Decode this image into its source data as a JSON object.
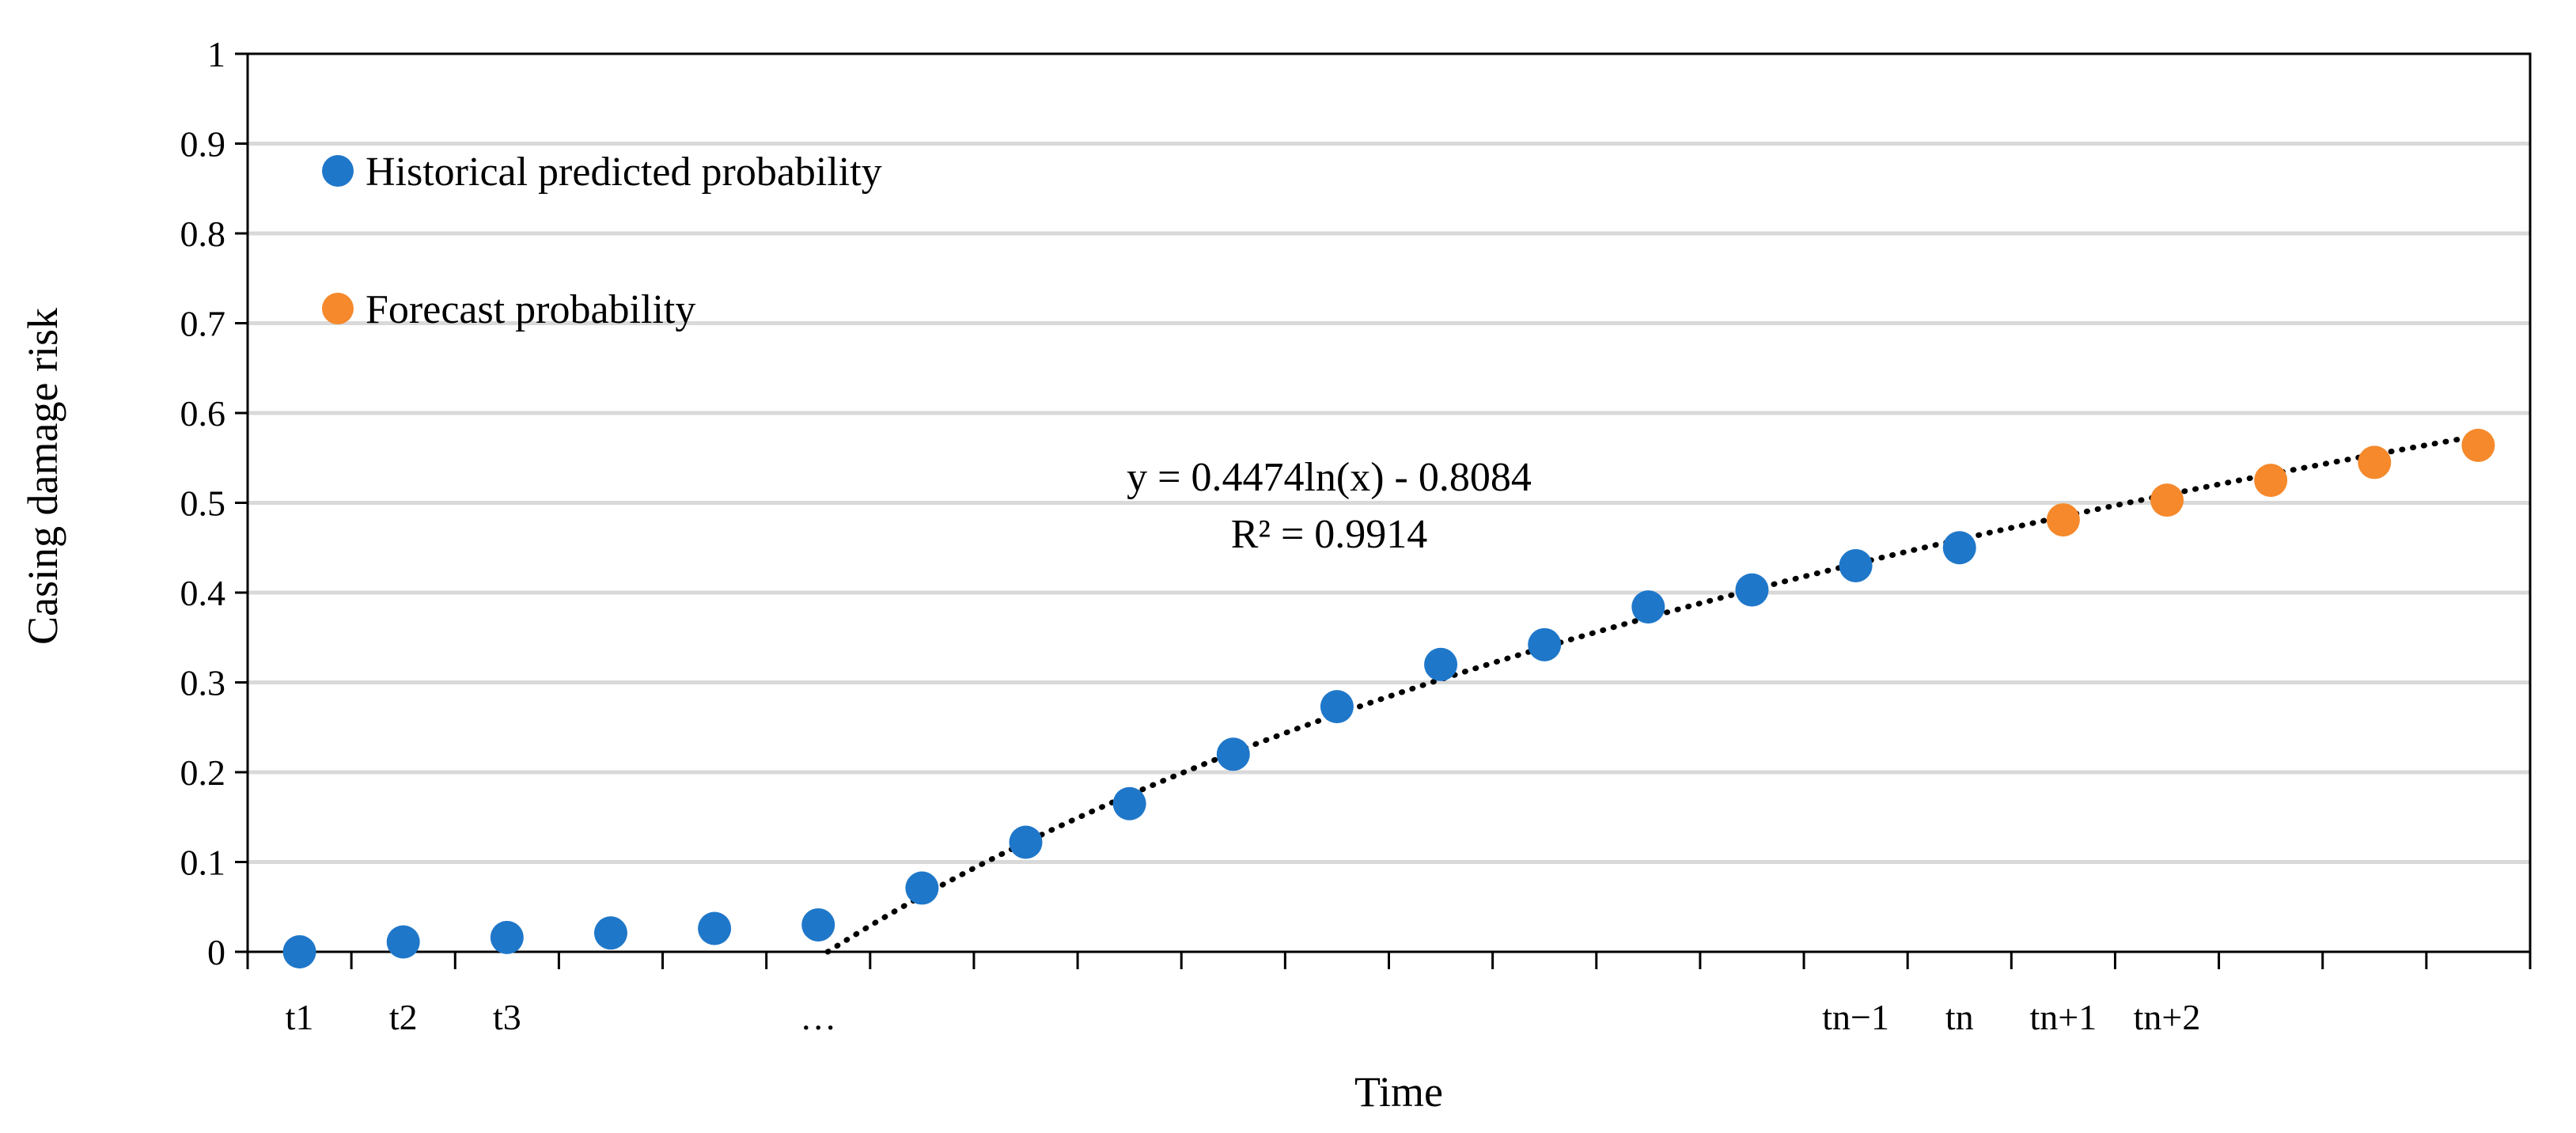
{
  "chart_data": {
    "type": "scatter",
    "title": "",
    "xlabel": "Time",
    "ylabel": "Casing damage risk",
    "ylim": [
      0,
      1
    ],
    "yticks": [
      "0",
      "0.1",
      "0.2",
      "0.3",
      "0.4",
      "0.5",
      "0.6",
      "0.7",
      "0.8",
      "0.9",
      "1"
    ],
    "xlim": [
      0.5,
      22.5
    ],
    "x_tick_labels": [
      {
        "x": 1,
        "label": "t1"
      },
      {
        "x": 2,
        "label": "t2"
      },
      {
        "x": 3,
        "label": "t3"
      },
      {
        "x": 6,
        "label": "…"
      },
      {
        "x": 16,
        "label": "tn−1"
      },
      {
        "x": 17,
        "label": "tn"
      },
      {
        "x": 18,
        "label": "tn+1"
      },
      {
        "x": 19,
        "label": "tn+2"
      }
    ],
    "series": [
      {
        "name": "Historical predicted probability",
        "color": "#1f77c9",
        "x": [
          1,
          2,
          3,
          4,
          5,
          6,
          7,
          8,
          9,
          10,
          11,
          12,
          13,
          14,
          15,
          16,
          17
        ],
        "values": [
          0.0,
          0.011,
          0.016,
          0.021,
          0.026,
          0.03,
          0.071,
          0.122,
          0.165,
          0.22,
          0.273,
          0.32,
          0.342,
          0.384,
          0.403,
          0.43,
          0.45
        ]
      },
      {
        "name": "Forecast probability",
        "color": "#f5892b",
        "x": [
          18,
          19,
          20,
          21,
          22
        ],
        "values": [
          0.481,
          0.503,
          0.525,
          0.545,
          0.564
        ]
      }
    ],
    "trendline": {
      "type": "log",
      "a": 0.4474,
      "b": -0.8084,
      "equation": "y = 0.4474ln(x) - 0.8084",
      "r_squared": "R² = 0.9914"
    },
    "legend_position": "top-left",
    "grid": true
  }
}
